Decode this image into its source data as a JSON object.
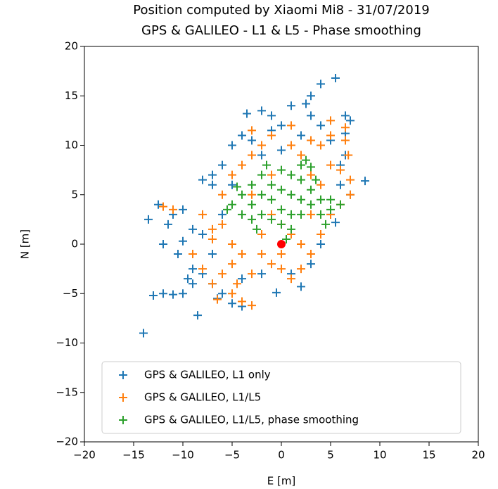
{
  "chart_data": {
    "type": "scatter",
    "title": "Position computed by Xiaomi Mi8 - 31/07/2019",
    "subtitle": "GPS & GALILEO - L1 & L5 - Phase smoothing",
    "xlabel": "E [m]",
    "ylabel": "N [m]",
    "xlim": [
      -20,
      20
    ],
    "ylim": [
      -20,
      20
    ],
    "xticks": [
      {
        "value": -20,
        "label": "−20"
      },
      {
        "value": -15,
        "label": "−15"
      },
      {
        "value": -10,
        "label": "−10"
      },
      {
        "value": -5,
        "label": "−5"
      },
      0,
      5,
      10,
      15,
      20
    ],
    "yticks": [
      {
        "value": -20,
        "label": "−20"
      },
      {
        "value": -15,
        "label": "−15"
      },
      {
        "value": -10,
        "label": "−10"
      },
      {
        "value": -5,
        "label": "−5"
      },
      0,
      5,
      10,
      15,
      20
    ],
    "legend": "lower center",
    "grid": false,
    "series": [
      {
        "name": "GPS & GALILEO, L1 only",
        "color": "#1f77b4",
        "marker": "plus",
        "x": [
          -14,
          -13.5,
          -13,
          -12,
          -11,
          -12.5,
          -8.5,
          5.5,
          4,
          3,
          2.5,
          1,
          -2,
          -3.5,
          8.5,
          7,
          6.5,
          6.5,
          5.5,
          2,
          -0.5,
          -4,
          -5,
          -10,
          -9,
          -10.5,
          -9,
          -8,
          -7,
          -6,
          -8,
          -7,
          -6,
          -5,
          -3,
          -1,
          0,
          2,
          4,
          5,
          6,
          -11,
          -10,
          -11.5,
          -9,
          -7,
          -8,
          -6,
          -5,
          -4,
          -2,
          1,
          3,
          4,
          5,
          6,
          3,
          -1,
          -4,
          -7,
          -9.5,
          -10,
          -12,
          -6.5,
          7,
          6.5,
          -2,
          0
        ],
        "y": [
          -9,
          2.5,
          -5.2,
          -5,
          -5.1,
          4,
          -7.2,
          16.8,
          16.2,
          15,
          14.2,
          14,
          13.5,
          13.2,
          6.4,
          5,
          11.2,
          9,
          2.2,
          -4.3,
          -4.9,
          -6.3,
          -6,
          0.3,
          1.5,
          -1,
          -2.5,
          -3,
          -4,
          -5,
          6.5,
          7,
          8,
          10,
          10.5,
          11.5,
          12,
          11,
          12,
          10.5,
          8,
          3,
          3.5,
          2,
          -4,
          -1,
          1,
          3,
          6,
          -3.5,
          -3,
          -3,
          -2,
          0,
          3,
          6,
          13,
          13,
          11,
          6,
          -3.5,
          -5,
          0,
          -5.5,
          12.5,
          13,
          9,
          9.5
        ]
      },
      {
        "name": "GPS & GALILEO, L1/L5",
        "color": "#ff7f0e",
        "marker": "plus",
        "x": [
          -12,
          -11,
          -8,
          -7,
          -9,
          -8,
          -7,
          -6.5,
          -5,
          -4,
          -3,
          -4.5,
          -3,
          -1,
          0,
          1,
          2,
          3,
          4,
          5,
          6,
          7,
          7,
          6,
          6.8,
          6.5,
          6.5,
          5,
          4,
          3,
          2,
          1,
          -1,
          -2,
          -3,
          -4,
          -5,
          -6,
          -6,
          -5,
          -4,
          -2,
          -1,
          0,
          1,
          2,
          3,
          4,
          5,
          -2,
          0,
          -3,
          -1,
          3,
          -5,
          -7,
          -3,
          1,
          5,
          -6
        ],
        "y": [
          3.8,
          3.5,
          3,
          1.5,
          -1,
          -2.5,
          -4,
          -5.6,
          -5,
          -5.8,
          -6.2,
          -4,
          -3,
          -2,
          -2.5,
          -3.5,
          -2.5,
          -1,
          1,
          3,
          4,
          5,
          6.5,
          7.5,
          9,
          10.5,
          11.8,
          11,
          10,
          10.5,
          9,
          10,
          11,
          10,
          9,
          8,
          7,
          5,
          2,
          0,
          -1,
          1,
          3,
          2,
          1,
          0,
          3,
          6,
          8,
          -1,
          -1,
          5,
          7,
          7,
          -2,
          0.5,
          11.5,
          12,
          12.5,
          -3
        ]
      },
      {
        "name": "GPS & GALILEO, L1/L5, phase smoothing",
        "color": "#2ca02c",
        "marker": "plus",
        "x": [
          -5,
          -4,
          -4,
          -3,
          -3,
          -3,
          -2,
          -2,
          -2,
          -1,
          -1,
          -1,
          0,
          0,
          0,
          0,
          1,
          1,
          1,
          1,
          2,
          2,
          2,
          2,
          3,
          3,
          3,
          4,
          4,
          5,
          5,
          6,
          -4.5,
          -5.5,
          2.5,
          3.5,
          -1.5,
          0.5,
          4.5,
          -2.5
        ],
        "y": [
          4,
          5,
          3,
          6,
          4,
          2.5,
          7,
          5,
          3,
          6,
          4.5,
          2.5,
          7.5,
          5.5,
          3.5,
          2,
          7,
          5,
          3,
          1.5,
          8,
          6.5,
          4.5,
          3,
          7.8,
          5.5,
          4,
          4.5,
          3,
          4.5,
          3.5,
          4,
          5.8,
          3.5,
          8.5,
          6.5,
          8,
          0.5,
          2,
          1.5
        ]
      },
      {
        "color": "#ff0000",
        "marker": "circle",
        "x": [
          0
        ],
        "y": [
          0
        ]
      }
    ]
  }
}
